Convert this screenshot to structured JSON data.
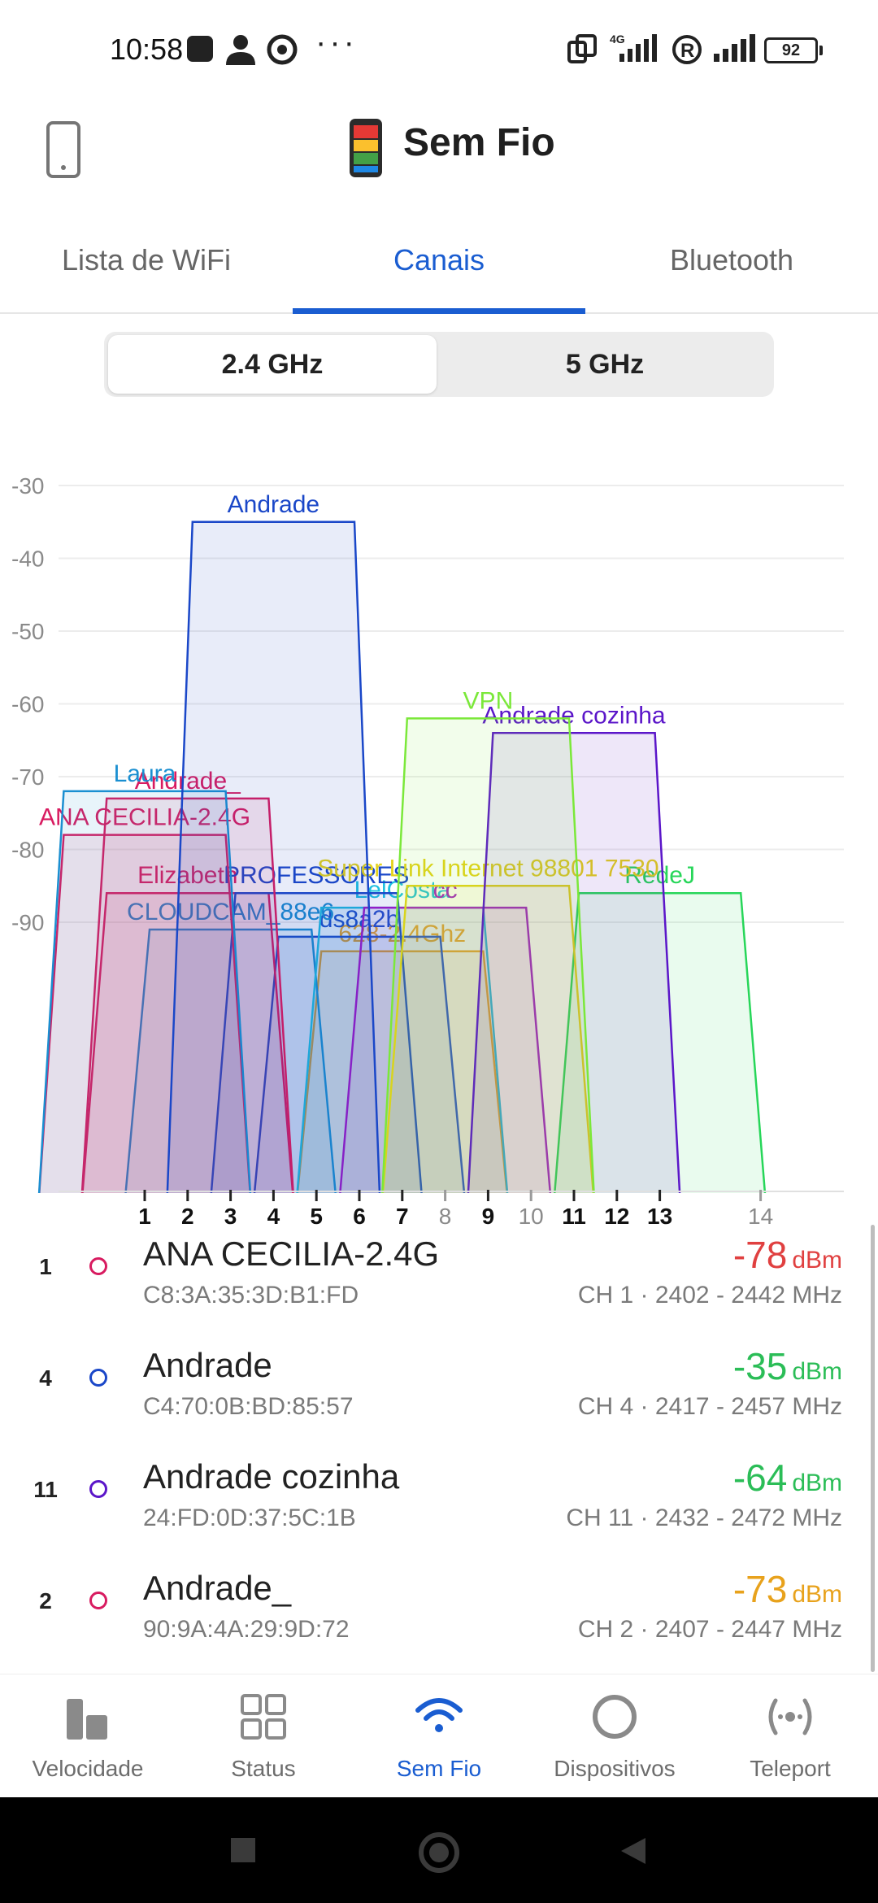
{
  "status_bar": {
    "time": "10:58",
    "network_4g": "4G",
    "battery": "92"
  },
  "app_bar": {
    "title": "Sem Fio"
  },
  "tabs": [
    {
      "label": "Lista de WiFi"
    },
    {
      "label": "Canais"
    },
    {
      "label": "Bluetooth"
    }
  ],
  "band_selector": {
    "option_24": "2.4 GHz",
    "option_5": "5 GHz",
    "selected": "2.4 GHz"
  },
  "chart_data": {
    "type": "area",
    "title": "",
    "xlabel": "",
    "ylabel": "",
    "ylim": [
      -95,
      -30
    ],
    "y_ticks": [
      "-30",
      "-40",
      "-50",
      "-60",
      "-70",
      "-80",
      "-90"
    ],
    "x_ticks": [
      "1",
      "2",
      "3",
      "4",
      "5",
      "6",
      "7",
      "8",
      "9",
      "10",
      "11",
      "12",
      "13",
      "14"
    ],
    "bold_ticks": [
      "1",
      "2",
      "3",
      "4",
      "5",
      "6",
      "7",
      "9",
      "11",
      "12",
      "13"
    ],
    "networks": [
      {
        "name": "Andrade",
        "channel": 4,
        "dbm": -35,
        "color": "#1a47c8"
      },
      {
        "name": "Andrade cozinha",
        "channel": 11,
        "dbm": -64,
        "color": "#5b16c9"
      },
      {
        "name": "VPN",
        "channel": 9,
        "dbm": -62,
        "color": "#7be83a"
      },
      {
        "name": "Laura",
        "channel": 1,
        "dbm": -72,
        "color": "#1a8fd1"
      },
      {
        "name": "Andrade_",
        "channel": 2,
        "dbm": -73,
        "color": "#d81b60"
      },
      {
        "name": "ANA CECILIA-2.4G",
        "channel": 1,
        "dbm": -78,
        "color": "#d81b60"
      },
      {
        "name": "Super Link Internet 98801 7530",
        "channel": 9,
        "dbm": -85,
        "color": "#e3d21a"
      },
      {
        "name": "RedeJ",
        "channel": 13,
        "dbm": -86,
        "color": "#27d659"
      },
      {
        "name": "Elizabeth",
        "channel": 2,
        "dbm": -86,
        "color": "#d81b60"
      },
      {
        "name": "PROFESSORES",
        "channel": 5,
        "dbm": -86,
        "color": "#1a47c8"
      },
      {
        "name": "LelCosta",
        "channel": 7,
        "dbm": -88,
        "color": "#1ec0e0"
      },
      {
        "name": "cc",
        "channel": 8,
        "dbm": -88,
        "color": "#a21ac8"
      },
      {
        "name": "CLOUDCAM_88e6",
        "channel": 3,
        "dbm": -91,
        "color": "#1a8fd1"
      },
      {
        "name": "ds8a2b",
        "channel": 6,
        "dbm": -92,
        "color": "#1a47c8"
      },
      {
        "name": "628-2.4Ghz",
        "channel": 7,
        "dbm": -94,
        "color": "#f3a21a"
      }
    ]
  },
  "list": [
    {
      "ch": "1",
      "ssid": "ANA CECILIA-2.4G",
      "mac": "C8:3A:35:3D:B1:FD",
      "dbm": "-78",
      "unit": "dBm",
      "info": "CH 1 · 2402 - 2442 MHz",
      "color": "#d81b60",
      "sig_color": "#e04040"
    },
    {
      "ch": "4",
      "ssid": "Andrade",
      "mac": "C4:70:0B:BD:85:57",
      "dbm": "-35",
      "unit": "dBm",
      "info": "CH 4 · 2417 - 2457 MHz",
      "color": "#1a47c8",
      "sig_color": "#2bbd57"
    },
    {
      "ch": "11",
      "ssid": "Andrade cozinha",
      "mac": "24:FD:0D:37:5C:1B",
      "dbm": "-64",
      "unit": "dBm",
      "info": "CH 11 · 2432 - 2472 MHz",
      "color": "#5b16c9",
      "sig_color": "#2bbd57"
    },
    {
      "ch": "2",
      "ssid": "Andrade_",
      "mac": "90:9A:4A:29:9D:72",
      "dbm": "-73",
      "unit": "dBm",
      "info": "CH 2 · 2407 - 2447 MHz",
      "color": "#d81b60",
      "sig_color": "#e8a21c"
    }
  ],
  "bottom_nav": [
    {
      "label": "Velocidade",
      "icon": "speed-bars-icon"
    },
    {
      "label": "Status",
      "icon": "grid-icon"
    },
    {
      "label": "Sem Fio",
      "icon": "wifi-icon"
    },
    {
      "label": "Dispositivos",
      "icon": "circle-icon"
    },
    {
      "label": "Teleport",
      "icon": "teleport-icon"
    }
  ]
}
